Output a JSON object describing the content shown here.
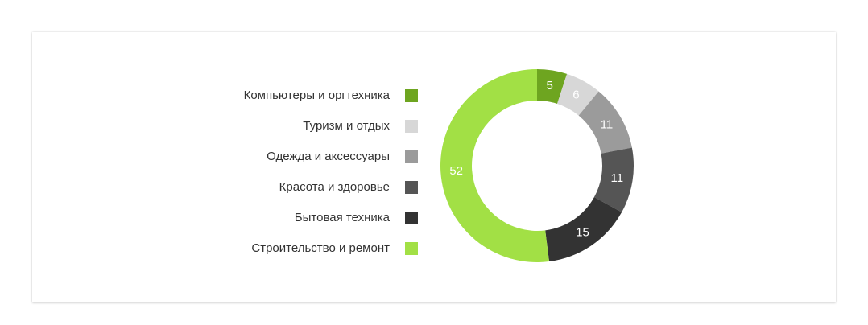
{
  "chart_data": {
    "type": "pie",
    "variant": "donut",
    "categories": [
      "Компьютеры и оргтехника",
      "Туризм и отдых",
      "Одежда и аксессуары",
      "Красота и здоровье",
      "Бытовая техника",
      "Строительство и ремонт"
    ],
    "values": [
      5,
      6,
      11,
      11,
      15,
      52
    ],
    "colors": [
      "#6ea520",
      "#d7d7d7",
      "#9b9b9b",
      "#555555",
      "#333333",
      "#a2e045"
    ],
    "legend_position": "left",
    "title": ""
  }
}
